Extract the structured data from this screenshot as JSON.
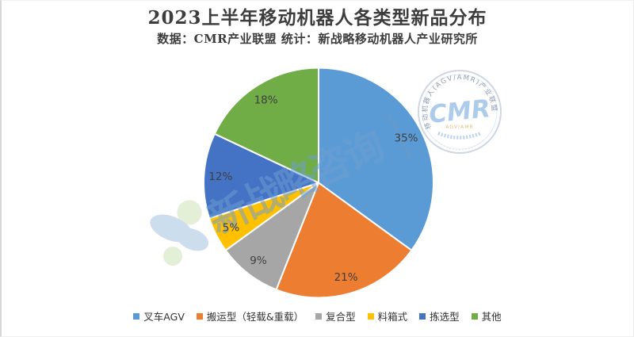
{
  "header": {
    "title": "2023上半年移动机器人各类型新品分布",
    "subtitle": "数据：CMR产业联盟 统计：新战略移动机器人产业研究所"
  },
  "chart_data": {
    "type": "pie",
    "title": "2023上半年移动机器人各类型新品分布",
    "categories": [
      "叉车AGV",
      "搬运型（轻载&重载）",
      "复合型",
      "料箱式",
      "拣选型",
      "其他"
    ],
    "values": [
      35,
      21,
      9,
      5,
      12,
      18
    ],
    "unit": "%",
    "data_labels": [
      "35%",
      "21%",
      "9%",
      "5%",
      "12%",
      "18%"
    ],
    "colors": [
      "#5B9BD5",
      "#ED7D31",
      "#A6A6A6",
      "#FFC000",
      "#4472C4",
      "#70AD47"
    ],
    "start_angle_deg": 0,
    "direction": "clockwise",
    "legend_position": "bottom",
    "slice_border_color": "#ffffff"
  },
  "watermark": {
    "text": "新战略咨询",
    "color": "#6f9fd3"
  },
  "stamp": {
    "arc_text": "移动机器人(AGV/AMR)产业联盟",
    "center_text": "CMR",
    "sub_text": "AGV/AMR",
    "color": "#93bce4"
  }
}
